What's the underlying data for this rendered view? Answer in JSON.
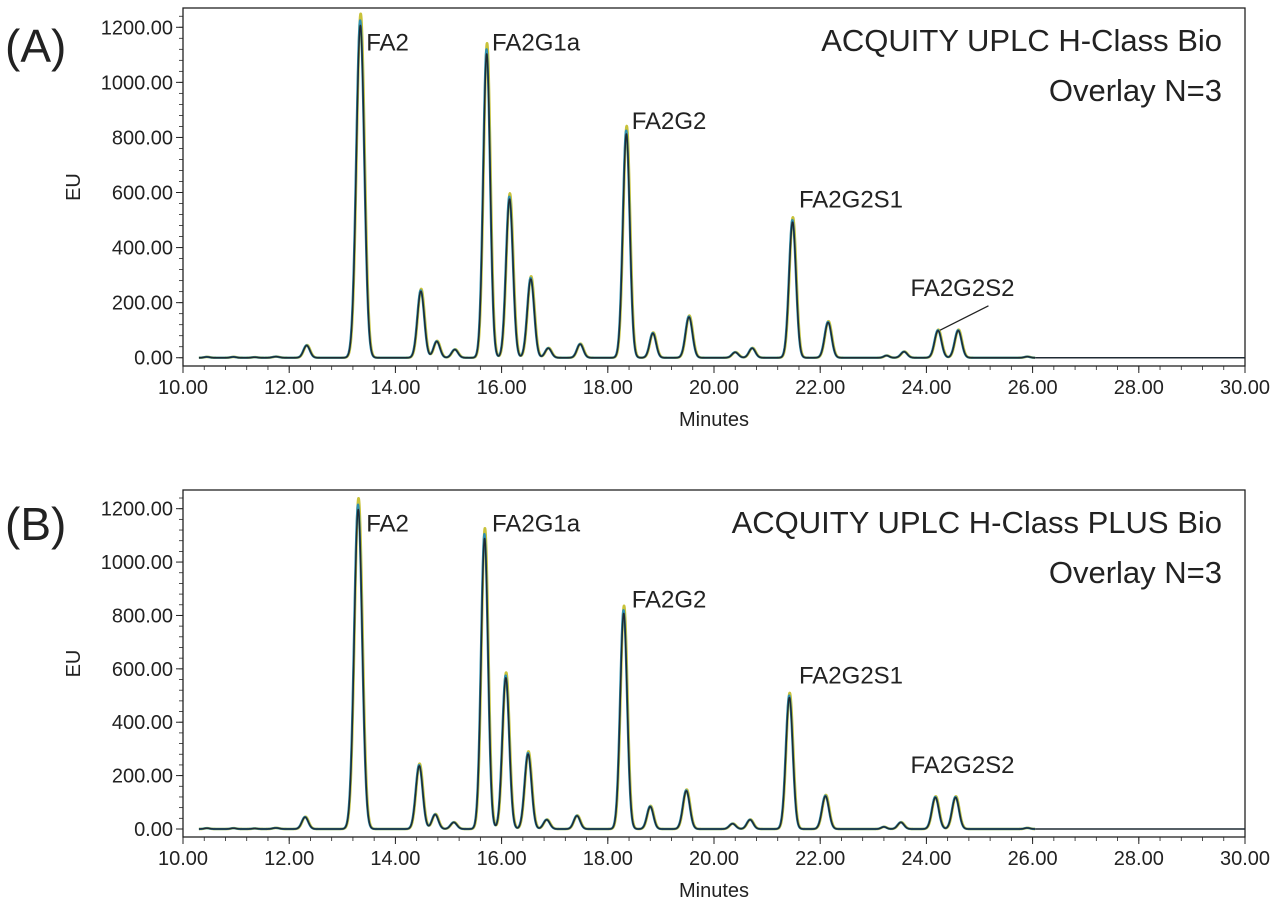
{
  "chart_data": [
    {
      "type": "line",
      "panel_label": "(A)",
      "title": "ACQUITY UPLC H-Class Bio",
      "subtitle": "Overlay N=3",
      "xlabel": "Minutes",
      "ylabel": "EU",
      "xlim": [
        10.0,
        30.0
      ],
      "ylim": [
        -30,
        1270
      ],
      "x_ticks": [
        "10.00",
        "12.00",
        "14.00",
        "16.00",
        "18.00",
        "20.00",
        "22.00",
        "24.00",
        "26.00",
        "28.00",
        "30.00"
      ],
      "y_ticks": [
        "0.00",
        "200.00",
        "400.00",
        "600.00",
        "800.00",
        "1000.00",
        "1200.00"
      ],
      "grid": false,
      "trace_colors": [
        "#c8c23a",
        "#2f8fb0",
        "#1f2a33"
      ],
      "peaks": [
        {
          "rt": 10.45,
          "height": 3,
          "width": 0.05
        },
        {
          "rt": 10.95,
          "height": 3,
          "width": 0.05
        },
        {
          "rt": 11.35,
          "height": 2,
          "width": 0.05
        },
        {
          "rt": 11.75,
          "height": 4,
          "width": 0.06
        },
        {
          "rt": 12.33,
          "height": 45,
          "width": 0.06
        },
        {
          "rt": 13.34,
          "height": 1225,
          "width": 0.075
        },
        {
          "rt": 14.48,
          "height": 245,
          "width": 0.065
        },
        {
          "rt": 14.78,
          "height": 60,
          "width": 0.06
        },
        {
          "rt": 15.12,
          "height": 30,
          "width": 0.06
        },
        {
          "rt": 15.72,
          "height": 1120,
          "width": 0.065
        },
        {
          "rt": 16.15,
          "height": 585,
          "width": 0.065
        },
        {
          "rt": 16.55,
          "height": 290,
          "width": 0.065
        },
        {
          "rt": 16.88,
          "height": 35,
          "width": 0.06
        },
        {
          "rt": 17.48,
          "height": 50,
          "width": 0.06
        },
        {
          "rt": 18.35,
          "height": 825,
          "width": 0.065
        },
        {
          "rt": 18.85,
          "height": 90,
          "width": 0.06
        },
        {
          "rt": 19.53,
          "height": 150,
          "width": 0.065
        },
        {
          "rt": 20.4,
          "height": 20,
          "width": 0.06
        },
        {
          "rt": 20.72,
          "height": 35,
          "width": 0.06
        },
        {
          "rt": 21.48,
          "height": 500,
          "width": 0.065
        },
        {
          "rt": 22.15,
          "height": 130,
          "width": 0.065
        },
        {
          "rt": 23.25,
          "height": 8,
          "width": 0.05
        },
        {
          "rt": 23.58,
          "height": 22,
          "width": 0.06
        },
        {
          "rt": 24.22,
          "height": 100,
          "width": 0.065
        },
        {
          "rt": 24.6,
          "height": 100,
          "width": 0.065
        },
        {
          "rt": 25.9,
          "height": 4,
          "width": 0.05
        }
      ],
      "annotations": [
        {
          "text": "FA2",
          "x": 13.45,
          "y": 1115
        },
        {
          "text": "FA2G1a",
          "x": 15.82,
          "y": 1115
        },
        {
          "text": "FA2G2",
          "x": 18.45,
          "y": 830
        },
        {
          "text": "FA2G2S1",
          "x": 21.6,
          "y": 545
        },
        {
          "text": "FA2G2S2",
          "x": 23.7,
          "y": 225,
          "pointer_to": [
            24.22,
            100
          ]
        }
      ]
    },
    {
      "type": "line",
      "panel_label": "(B)",
      "title": "ACQUITY UPLC H-Class PLUS Bio",
      "subtitle": "Overlay N=3",
      "xlabel": "Minutes",
      "ylabel": "EU",
      "xlim": [
        10.0,
        30.0
      ],
      "ylim": [
        -30,
        1270
      ],
      "x_ticks": [
        "10.00",
        "12.00",
        "14.00",
        "16.00",
        "18.00",
        "20.00",
        "22.00",
        "24.00",
        "26.00",
        "28.00",
        "30.00"
      ],
      "y_ticks": [
        "0.00",
        "200.00",
        "400.00",
        "600.00",
        "800.00",
        "1000.00",
        "1200.00"
      ],
      "grid": false,
      "trace_colors": [
        "#c8c23a",
        "#2f8fb0",
        "#1f2a33"
      ],
      "peaks": [
        {
          "rt": 10.45,
          "height": 3,
          "width": 0.05
        },
        {
          "rt": 10.95,
          "height": 3,
          "width": 0.05
        },
        {
          "rt": 11.35,
          "height": 2,
          "width": 0.05
        },
        {
          "rt": 11.75,
          "height": 4,
          "width": 0.06
        },
        {
          "rt": 12.3,
          "height": 45,
          "width": 0.06
        },
        {
          "rt": 13.3,
          "height": 1215,
          "width": 0.075
        },
        {
          "rt": 14.45,
          "height": 240,
          "width": 0.065
        },
        {
          "rt": 14.75,
          "height": 55,
          "width": 0.06
        },
        {
          "rt": 15.1,
          "height": 25,
          "width": 0.06
        },
        {
          "rt": 15.68,
          "height": 1105,
          "width": 0.065
        },
        {
          "rt": 16.08,
          "height": 575,
          "width": 0.065
        },
        {
          "rt": 16.5,
          "height": 285,
          "width": 0.065
        },
        {
          "rt": 16.85,
          "height": 35,
          "width": 0.06
        },
        {
          "rt": 17.42,
          "height": 50,
          "width": 0.06
        },
        {
          "rt": 18.3,
          "height": 820,
          "width": 0.065
        },
        {
          "rt": 18.8,
          "height": 85,
          "width": 0.06
        },
        {
          "rt": 19.48,
          "height": 145,
          "width": 0.065
        },
        {
          "rt": 20.35,
          "height": 20,
          "width": 0.06
        },
        {
          "rt": 20.68,
          "height": 35,
          "width": 0.06
        },
        {
          "rt": 21.42,
          "height": 500,
          "width": 0.065
        },
        {
          "rt": 22.1,
          "height": 125,
          "width": 0.065
        },
        {
          "rt": 23.2,
          "height": 8,
          "width": 0.05
        },
        {
          "rt": 23.52,
          "height": 25,
          "width": 0.06
        },
        {
          "rt": 24.17,
          "height": 120,
          "width": 0.065
        },
        {
          "rt": 24.55,
          "height": 120,
          "width": 0.065
        },
        {
          "rt": 25.9,
          "height": 4,
          "width": 0.05
        }
      ],
      "annotations": [
        {
          "text": "FA2",
          "x": 13.45,
          "y": 1115
        },
        {
          "text": "FA2G1a",
          "x": 15.82,
          "y": 1115
        },
        {
          "text": "FA2G2",
          "x": 18.45,
          "y": 830
        },
        {
          "text": "FA2G2S1",
          "x": 21.6,
          "y": 545
        },
        {
          "text": "FA2G2S2",
          "x": 23.7,
          "y": 210
        }
      ]
    }
  ]
}
